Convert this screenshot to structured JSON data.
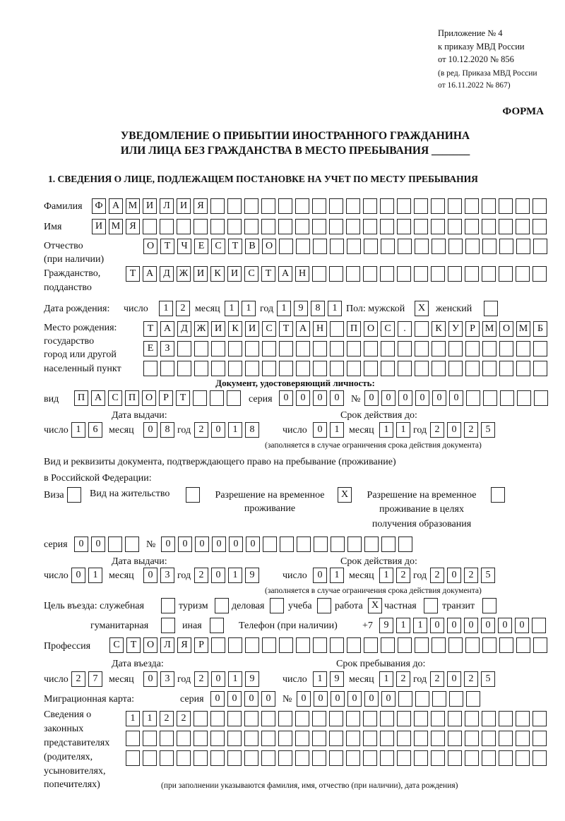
{
  "header": {
    "appendix": [
      "Приложение № 4",
      "к приказу МВД России",
      "от 10.12.2020 № 856"
    ],
    "edition": [
      "(в ред. Приказа МВД России",
      "от 16.11.2022 № 867)"
    ],
    "form_label": "ФОРМА",
    "title": [
      "УВЕДОМЛЕНИЕ О ПРИБЫТИИ ИНОСТРАННОГО ГРАЖДАНИНА",
      "ИЛИ ЛИЦА БЕЗ ГРАЖДАНСТВА В МЕСТО ПРЕБЫВАНИЯ _______"
    ],
    "section1": "1. СВЕДЕНИЯ О ЛИЦЕ, ПОДЛЕЖАЩЕМ ПОСТАНОВКЕ НА УЧЕТ ПО МЕСТУ ПРЕБЫВАНИЯ"
  },
  "person": {
    "surname": {
      "label": "Фамилия",
      "value": "ФАМИЛИЯ"
    },
    "name": {
      "label": "Имя",
      "value": "ИМЯ"
    },
    "patronymic": {
      "label": [
        "Отчество",
        "(при наличии)"
      ],
      "value": "ОТЧЕСТВО"
    },
    "citizenship": {
      "label": [
        "Гражданство,",
        "подданство"
      ],
      "value": "ТАДЖИКИСТАН"
    },
    "birth_date": {
      "label": "Дата рождения:",
      "day_label": "число",
      "day": "12",
      "month_label": "месяц",
      "month": "11",
      "year_label": "год",
      "year": "1981"
    },
    "sex": {
      "label": "Пол: мужской",
      "male": "X",
      "female_label": "женский",
      "female": ""
    },
    "birth_place": {
      "label": [
        "Место рождения:",
        "государство",
        "город или другой",
        "населенный пункт"
      ],
      "lines": [
        "ТАДЖИКИСТАН ПОС. КУРМОМБ",
        "ЕЗ",
        ""
      ]
    }
  },
  "identity_doc": {
    "heading": "Документ, удостоверяющий личность:",
    "kind_label": "вид",
    "kind": "ПАСПОРТ",
    "series_label": "серия",
    "series": "0000",
    "number_label": "№",
    "number": "000000",
    "issue_label": "Дата выдачи:",
    "valid_label": "Срок действия до:",
    "day_label": "число",
    "month_label": "месяц",
    "year_label": "год",
    "issue": {
      "day": "16",
      "month": "08",
      "year": "2018"
    },
    "valid": {
      "day": "01",
      "month": "11",
      "year": "2025"
    },
    "note": "(заполняется в случае ограничения срока действия документа)"
  },
  "right_doc": {
    "heading": [
      "Вид и реквизиты документа, подтверждающего право на пребывание (проживание)",
      "в Российской Федерации:"
    ],
    "visa_label": "Виза",
    "visa": "",
    "residence_label": "Вид на жительство",
    "residence": "",
    "temp_label": [
      "Разрешение на временное",
      "проживание"
    ],
    "temp": "X",
    "temp_edu_label": [
      "Разрешение на временное",
      "проживание в целях",
      "получения образования"
    ],
    "temp_edu": "",
    "series_label": "серия",
    "series": "00",
    "number_label": "№",
    "number": "000000",
    "issue_label": "Дата выдачи:",
    "valid_label": "Срок действия до:",
    "day_label": "число",
    "month_label": "месяц",
    "year_label": "год",
    "issue": {
      "day": "01",
      "month": "03",
      "year": "2019"
    },
    "valid": {
      "day": "01",
      "month": "12",
      "year": "2025"
    },
    "note": "(заполняется в случае ограничения срока действия документа)"
  },
  "purpose": {
    "label": "Цель въезда: служебная",
    "official": "",
    "tourism_label": "туризм",
    "tourism": "",
    "business_label": "деловая",
    "business": "",
    "study_label": "учеба",
    "study": "",
    "work_label": "работа",
    "work": "X",
    "private_label": "частная",
    "private": "",
    "transit_label": "транзит",
    "transit": "",
    "humanitarian_label": "гуманитарная",
    "humanitarian": "",
    "other_label": "иная",
    "other": ""
  },
  "phone": {
    "label": "Телефон (при наличии)",
    "prefix": "+7",
    "value": "911000000"
  },
  "profession": {
    "label": "Профессия",
    "value": "СТОЛЯР"
  },
  "stay": {
    "entry_label": "Дата въезда:",
    "until_label": "Срок пребывания до:",
    "day_label": "число",
    "month_label": "месяц",
    "year_label": "год",
    "entry": {
      "day": "27",
      "month": "03",
      "year": "2019"
    },
    "until": {
      "day": "19",
      "month": "12",
      "year": "2025"
    }
  },
  "migration_card": {
    "label": "Миграционная карта:",
    "series_label": "серия",
    "series": "0000",
    "number_label": "№",
    "number": "000000"
  },
  "representatives": {
    "label": [
      "Сведения о",
      "законных",
      "представителях",
      "(родителях,",
      "усыновителях,",
      "попечителях)"
    ],
    "lines": [
      "1122",
      "",
      ""
    ],
    "note": "(при заполнении указываются фамилия, имя, отчество (при наличии), дата рождения)"
  }
}
